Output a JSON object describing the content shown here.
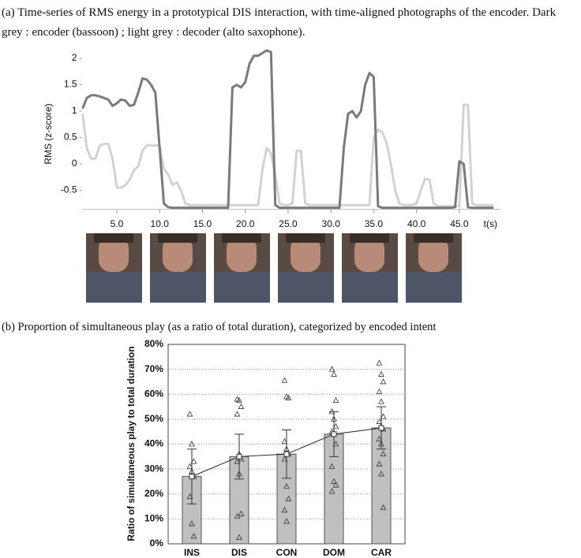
{
  "chart_data": [
    {
      "type": "line",
      "title": "(a) Time-series of RMS energy in a prototypical DIS interaction, with time-aligned photographs of the encoder. Dark grey : encoder (bassoon) ; light grey : decoder (alto saxophone).",
      "x_label": "t(s)",
      "y_label": "RMS (z-score)",
      "xlim": [
        0.9,
        49.8
      ],
      "ylim": [
        -0.89,
        2.24
      ],
      "xticks": [
        {
          "value": 5,
          "label": "5.0"
        },
        {
          "value": 10,
          "label": "10.0"
        },
        {
          "value": 15,
          "label": "15.0"
        },
        {
          "value": 20,
          "label": "20.0"
        },
        {
          "value": 25,
          "label": "25.0"
        },
        {
          "value": 30,
          "label": "30.0"
        },
        {
          "value": 35,
          "label": "35.0"
        },
        {
          "value": 40,
          "label": "40.0"
        },
        {
          "value": 45,
          "label": "45.0"
        }
      ],
      "yticks": [
        -0.5,
        0,
        0.5,
        1,
        1.5,
        2
      ],
      "x": [
        1,
        1.5,
        2,
        2.5,
        3,
        3.5,
        4,
        4.5,
        5,
        5.5,
        6,
        6.5,
        7,
        7.5,
        8,
        8.5,
        9,
        9.5,
        10,
        10.5,
        11,
        11.5,
        12,
        12.5,
        13,
        13.5,
        14,
        14.5,
        15,
        15.5,
        16,
        16.5,
        17,
        17.5,
        18,
        18.5,
        19,
        19.5,
        20,
        20.5,
        21,
        21.5,
        22,
        22.5,
        23,
        23.5,
        24,
        24.5,
        25,
        25.5,
        26,
        26.5,
        27,
        27.5,
        28,
        28.5,
        29,
        29.5,
        30,
        30.5,
        31,
        31.5,
        32,
        32.5,
        33,
        33.5,
        34,
        34.5,
        35,
        35.5,
        36,
        36.5,
        37,
        37.5,
        38,
        38.5,
        39,
        39.5,
        40,
        40.5,
        41,
        41.5,
        42,
        42.5,
        43,
        43.5,
        44,
        44.5,
        45,
        45.5,
        46,
        46.5,
        47,
        47.5,
        48,
        48.5,
        49
      ],
      "series": [
        {
          "color": "#7a7a7a",
          "values": [
            1.05,
            1.25,
            1.3,
            1.3,
            1.28,
            1.25,
            1.22,
            1.1,
            1.15,
            1.22,
            1.2,
            1.1,
            1.12,
            1.35,
            1.62,
            1.6,
            1.5,
            1.35,
            0.3,
            -0.75,
            -0.82,
            -0.83,
            -0.83,
            -0.83,
            -0.83,
            -0.83,
            -0.83,
            -0.83,
            -0.83,
            -0.83,
            -0.83,
            -0.83,
            -0.83,
            -0.83,
            -0.83,
            1.45,
            1.5,
            1.45,
            1.55,
            1.9,
            2.05,
            2.05,
            2.1,
            2.15,
            2.12,
            -0.78,
            -0.83,
            -0.83,
            -0.83,
            -0.83,
            -0.83,
            -0.83,
            -0.83,
            -0.83,
            -0.83,
            -0.83,
            -0.83,
            -0.83,
            -0.83,
            -0.83,
            -0.83,
            0.3,
            0.95,
            1.0,
            0.88,
            1.0,
            1.5,
            1.72,
            1.65,
            -0.8,
            -0.83,
            -0.83,
            -0.83,
            -0.83,
            -0.83,
            -0.83,
            -0.83,
            -0.83,
            -0.83,
            -0.83,
            -0.83,
            -0.83,
            -0.83,
            -0.83,
            -0.83,
            -0.83,
            -0.83,
            -0.82,
            0.05,
            0.0,
            -0.82,
            -0.83,
            -0.83,
            -0.83,
            -0.83,
            -0.83,
            -0.83
          ]
        },
        {
          "color": "#d2d2d2",
          "values": [
            0.95,
            0.3,
            0.1,
            0.1,
            0.35,
            0.38,
            0.38,
            0.1,
            -0.45,
            -0.45,
            -0.4,
            -0.3,
            -0.12,
            -0.05,
            0.25,
            0.35,
            0.35,
            0.35,
            0.35,
            -0.1,
            -0.2,
            -0.4,
            -0.35,
            -0.5,
            -0.75,
            -0.78,
            -0.78,
            -0.78,
            -0.78,
            -0.78,
            -0.78,
            -0.78,
            -0.78,
            -0.78,
            -0.78,
            -0.78,
            -0.78,
            -0.78,
            -0.78,
            -0.78,
            -0.78,
            -0.78,
            -0.1,
            0.3,
            0.2,
            -0.2,
            -0.75,
            -0.78,
            -0.78,
            -0.75,
            0.25,
            0.25,
            -0.75,
            -0.78,
            -0.78,
            -0.78,
            -0.78,
            -0.78,
            -0.78,
            -0.78,
            -0.78,
            -0.78,
            -0.78,
            -0.78,
            -0.78,
            -0.78,
            -0.78,
            -0.78,
            0.5,
            0.65,
            0.6,
            0.4,
            0.0,
            -0.5,
            -0.75,
            -0.78,
            -0.78,
            -0.78,
            -0.75,
            -0.5,
            -0.28,
            -0.3,
            -0.75,
            -0.8,
            -0.8,
            -0.8,
            -0.8,
            -0.8,
            -0.8,
            1.12,
            1.12,
            -0.75,
            -0.78,
            -0.78,
            -0.78,
            -0.78,
            -0.78
          ]
        }
      ]
    },
    {
      "type": "bar",
      "title": "(b) Proportion of simultaneous play (as a ratio of total duration), categorized by encoded intent",
      "y_label": "Ratio of simultaneous play to total duration",
      "categories": [
        "INS",
        "DIS",
        "CON",
        "DOM",
        "CAR"
      ],
      "values": [
        27,
        35,
        36,
        44,
        46.5
      ],
      "errors": [
        11,
        9,
        9.7,
        9,
        8.5
      ],
      "points": [
        [
          52,
          40,
          33,
          31,
          29,
          27,
          19,
          8,
          3
        ],
        [
          58,
          57.5,
          55,
          52,
          36,
          34,
          33,
          28,
          12,
          11,
          2.5
        ],
        [
          65.5,
          59,
          58.5,
          41,
          38,
          36,
          34,
          23,
          18,
          13.5,
          9
        ],
        [
          70,
          68,
          57.5,
          53,
          50,
          47,
          45,
          44,
          40,
          31,
          25,
          23.5,
          21
        ],
        [
          72.5,
          68,
          65,
          61,
          57,
          51,
          49,
          47,
          46,
          42,
          40,
          36,
          32,
          28,
          14.5
        ]
      ],
      "color": "#c0c0c0",
      "ylim": [
        0,
        80
      ],
      "yticks": [
        {
          "value": 0,
          "label": "0%"
        },
        {
          "value": 10,
          "label": "10%"
        },
        {
          "value": 20,
          "label": "20%"
        },
        {
          "value": 30,
          "label": "30%"
        },
        {
          "value": 40,
          "label": "40%"
        },
        {
          "value": 50,
          "label": "50%"
        },
        {
          "value": 60,
          "label": "60%"
        },
        {
          "value": 70,
          "label": "70%"
        },
        {
          "value": 80,
          "label": "80%"
        }
      ],
      "grid": true
    }
  ]
}
